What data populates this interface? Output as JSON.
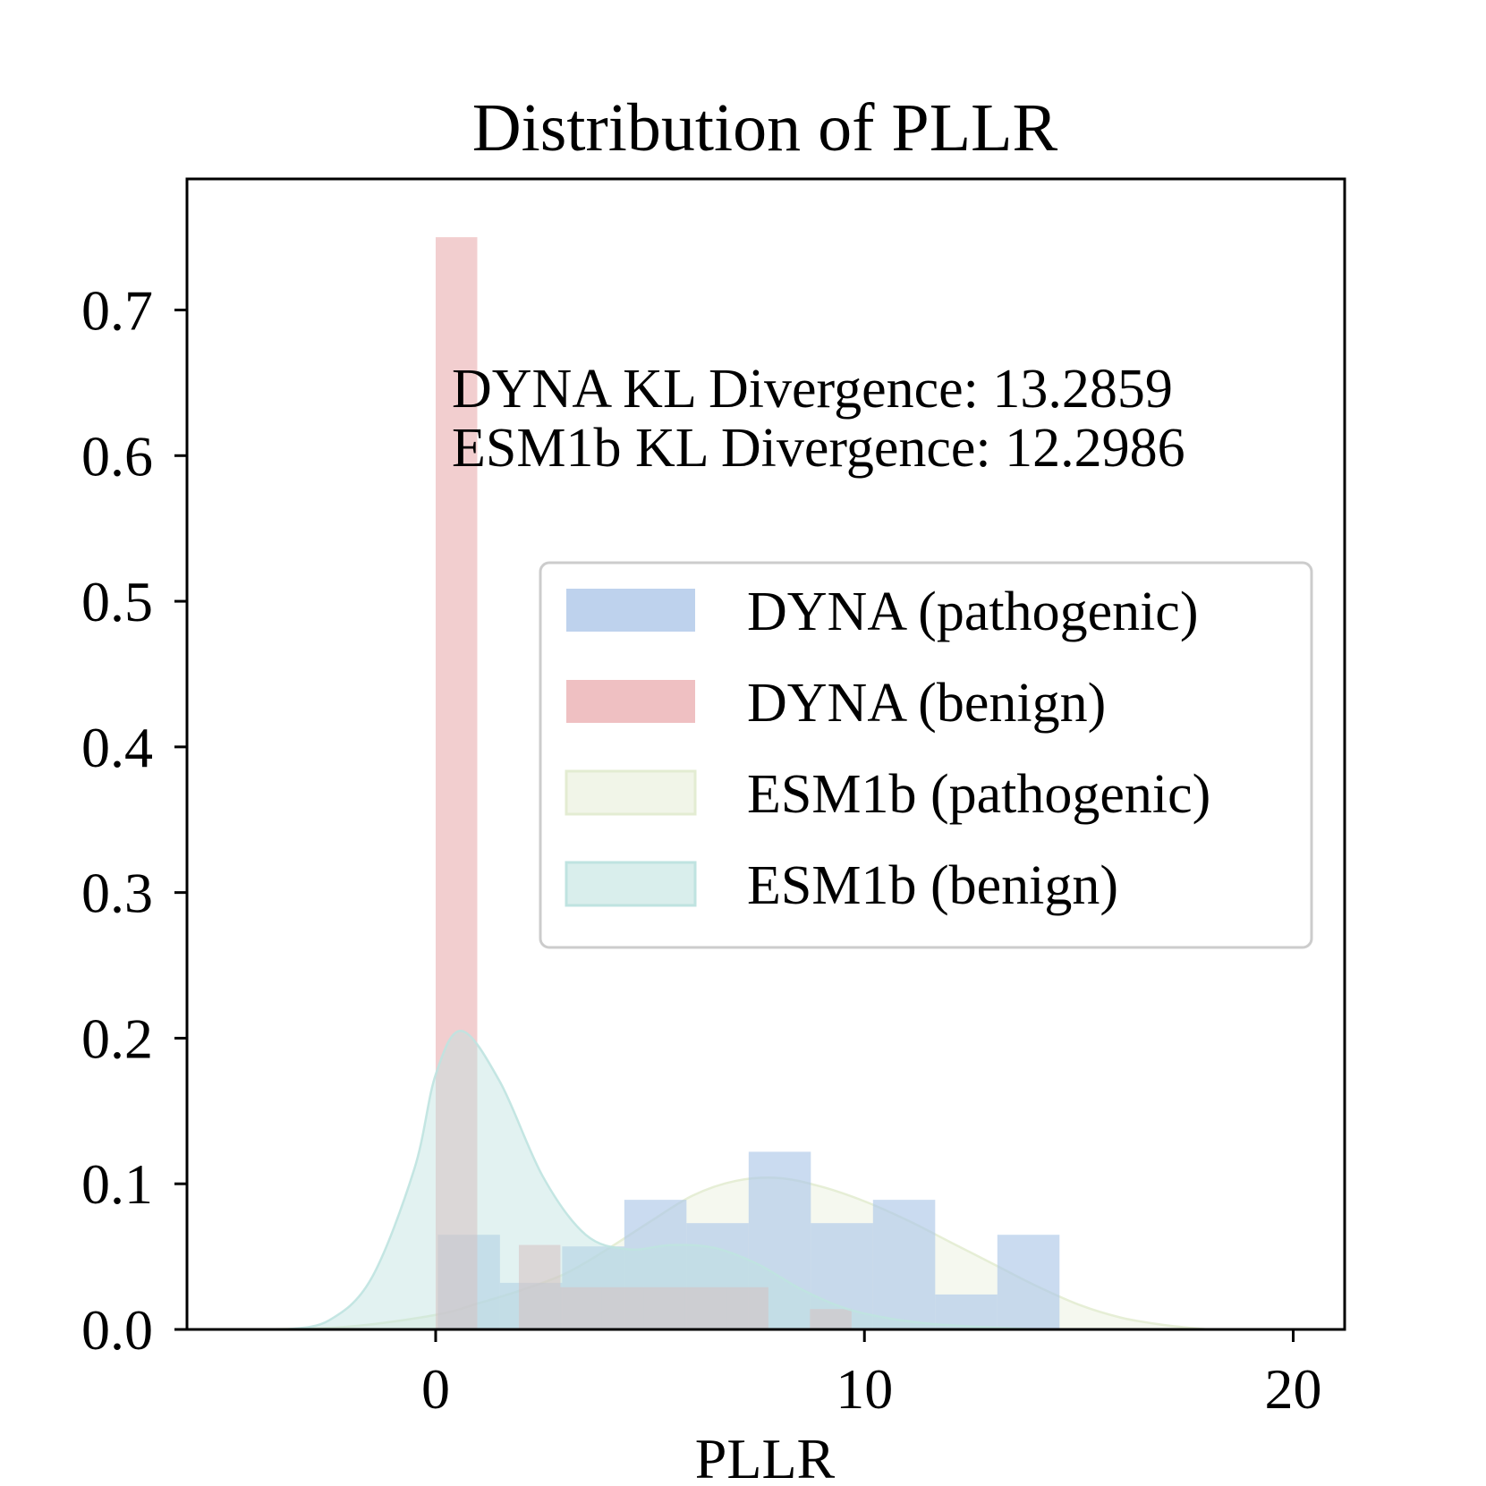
{
  "chart_data": {
    "type": "histogram+kde",
    "title": "Distribution of PLLR",
    "xlabel": "PLLR",
    "ylabel": "",
    "xlim": [
      -5.8,
      21.2
    ],
    "ylim": [
      0,
      0.79
    ],
    "xticks": [
      0,
      10,
      20
    ],
    "yticks": [
      0.0,
      0.1,
      0.2,
      0.3,
      0.4,
      0.5,
      0.6,
      0.7
    ],
    "grid": false,
    "legend_position": "center-right",
    "annotations": [
      "DYNA KL Divergence: 13.2859",
      "ESM1b KL Divergence: 12.2986"
    ],
    "series": [
      {
        "name": "DYNA (pathogenic)",
        "kind": "histogram",
        "color": "#aec7e8",
        "opacity": 0.65,
        "bins": [
          {
            "x0": 0.05,
            "x1": 1.5,
            "y": 0.065
          },
          {
            "x0": 1.5,
            "x1": 2.95,
            "y": 0.032
          },
          {
            "x0": 2.95,
            "x1": 4.4,
            "y": 0.057
          },
          {
            "x0": 4.4,
            "x1": 5.85,
            "y": 0.089
          },
          {
            "x0": 5.85,
            "x1": 7.3,
            "y": 0.073
          },
          {
            "x0": 7.3,
            "x1": 8.75,
            "y": 0.122
          },
          {
            "x0": 8.75,
            "x1": 10.2,
            "y": 0.073
          },
          {
            "x0": 10.2,
            "x1": 11.65,
            "y": 0.089
          },
          {
            "x0": 11.65,
            "x1": 13.1,
            "y": 0.024
          },
          {
            "x0": 13.1,
            "x1": 14.55,
            "y": 0.065
          }
        ]
      },
      {
        "name": "DYNA (benign)",
        "kind": "histogram",
        "color": "#e8a5a8",
        "opacity": 0.55,
        "bins": [
          {
            "x0": 0.0,
            "x1": 0.97,
            "y": 0.75
          },
          {
            "x0": 0.97,
            "x1": 1.94,
            "y": 0.0
          },
          {
            "x0": 1.94,
            "x1": 2.91,
            "y": 0.058
          },
          {
            "x0": 2.91,
            "x1": 3.88,
            "y": 0.029
          },
          {
            "x0": 3.88,
            "x1": 4.85,
            "y": 0.029
          },
          {
            "x0": 4.85,
            "x1": 5.82,
            "y": 0.029
          },
          {
            "x0": 5.82,
            "x1": 6.79,
            "y": 0.029
          },
          {
            "x0": 6.79,
            "x1": 7.76,
            "y": 0.029
          },
          {
            "x0": 7.76,
            "x1": 8.73,
            "y": 0.0
          },
          {
            "x0": 8.73,
            "x1": 9.7,
            "y": 0.014
          }
        ]
      },
      {
        "name": "ESM1b (pathogenic)",
        "kind": "kde",
        "color": "#e3ecd2",
        "opacity": 0.35,
        "points": [
          [
            -4,
            0.0
          ],
          [
            -2,
            0.002
          ],
          [
            0,
            0.01
          ],
          [
            1,
            0.018
          ],
          [
            2,
            0.027
          ],
          [
            3,
            0.038
          ],
          [
            4,
            0.055
          ],
          [
            5,
            0.074
          ],
          [
            6,
            0.092
          ],
          [
            7,
            0.102
          ],
          [
            8,
            0.104
          ],
          [
            9,
            0.098
          ],
          [
            10,
            0.088
          ],
          [
            11,
            0.075
          ],
          [
            12,
            0.06
          ],
          [
            13,
            0.045
          ],
          [
            14,
            0.03
          ],
          [
            15,
            0.017
          ],
          [
            16,
            0.008
          ],
          [
            17,
            0.003
          ],
          [
            18,
            0.0
          ]
        ]
      },
      {
        "name": "ESM1b (benign)",
        "kind": "kde",
        "color": "#bfe3e0",
        "opacity": 0.45,
        "points": [
          [
            -3.5,
            0.0
          ],
          [
            -2.5,
            0.006
          ],
          [
            -1.5,
            0.035
          ],
          [
            -0.5,
            0.11
          ],
          [
            0,
            0.175
          ],
          [
            0.6,
            0.205
          ],
          [
            1.5,
            0.17
          ],
          [
            2.5,
            0.105
          ],
          [
            3.5,
            0.065
          ],
          [
            4.5,
            0.055
          ],
          [
            5.5,
            0.058
          ],
          [
            6.5,
            0.056
          ],
          [
            7.5,
            0.045
          ],
          [
            8.5,
            0.028
          ],
          [
            9.5,
            0.015
          ],
          [
            10.5,
            0.008
          ],
          [
            11.5,
            0.004
          ],
          [
            12.5,
            0.002
          ],
          [
            14,
            0.0
          ]
        ]
      }
    ]
  }
}
